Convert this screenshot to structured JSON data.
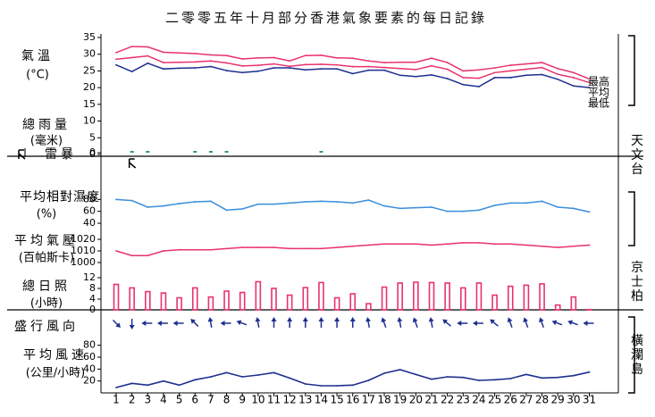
{
  "title": "二零零五年十月部分香港氣象要素的每日記錄",
  "chart_data": {
    "type": "line",
    "title": "二零零五年十月部分香港氣象要素的每日記錄",
    "x": [
      1,
      2,
      3,
      4,
      5,
      6,
      7,
      8,
      9,
      10,
      11,
      12,
      13,
      14,
      15,
      16,
      17,
      18,
      19,
      20,
      21,
      22,
      23,
      24,
      25,
      26,
      27,
      28,
      29,
      30,
      31
    ],
    "panels": {
      "temperature": {
        "label": "氣溫",
        "unit": "(°C)",
        "ylim": [
          0,
          35
        ],
        "ticks": [
          "0",
          "5",
          "10",
          "15",
          "20",
          "25",
          "30",
          "35"
        ],
        "series": [
          {
            "name": "最高",
            "color": "#e8336b",
            "values": [
              30.5,
              32.3,
              32.2,
              30.6,
              30.4,
              30.2,
              29.8,
              29.6,
              28.6,
              28.9,
              29.0,
              28.0,
              29.6,
              29.7,
              28.9,
              28.8,
              28.0,
              27.5,
              27.6,
              27.6,
              28.8,
              27.5,
              25.0,
              25.3,
              25.9,
              26.7,
              27.1,
              27.5,
              25.7,
              24.5,
              22.6
            ]
          },
          {
            "name": "平均",
            "color": "#e8336b",
            "values": [
              28.5,
              29.0,
              29.5,
              27.5,
              27.6,
              27.7,
              28.0,
              27.4,
              26.5,
              26.7,
              27.1,
              26.4,
              26.9,
              27.0,
              26.8,
              26.3,
              26.3,
              26.0,
              25.7,
              25.4,
              26.5,
              25.5,
              23.0,
              22.8,
              24.5,
              25.0,
              25.5,
              26.0,
              24.0,
              23.0,
              21.5
            ]
          },
          {
            "name": "最低",
            "color": "#1e2f8f",
            "values": [
              26.8,
              24.8,
              27.3,
              25.6,
              25.8,
              25.9,
              26.3,
              25.1,
              24.5,
              24.9,
              25.9,
              25.9,
              25.3,
              25.6,
              25.6,
              24.2,
              25.2,
              25.2,
              23.7,
              23.3,
              23.8,
              22.7,
              20.9,
              20.3,
              23.0,
              23.0,
              23.7,
              23.9,
              22.5,
              20.5,
              20.0
            ]
          }
        ]
      },
      "rainfall": {
        "label": "總雨量",
        "unit": "(毫米)",
        "ticks": [
          "0"
        ],
        "values": [
          0,
          0.1,
          0.2,
          0,
          0,
          0.1,
          0.1,
          0.1,
          0,
          0,
          0,
          0,
          0,
          0.1,
          0,
          0,
          0,
          0,
          0,
          0,
          0,
          0,
          0,
          0,
          0,
          0,
          0,
          0,
          0,
          0,
          0
        ]
      },
      "thunderstorm": {
        "label": "雷暴",
        "ticks": [
          "0"
        ],
        "days": [
          2
        ]
      },
      "humidity": {
        "label": "平均相對濕度",
        "unit": "(%)",
        "ylim": [
          40,
          100
        ],
        "ticks": [
          "40",
          "60",
          "80"
        ],
        "color": "#3a8edc",
        "values": [
          80,
          78,
          67,
          69,
          73,
          76,
          77,
          62,
          64,
          72,
          72,
          74,
          76,
          77,
          76,
          74,
          79,
          69,
          65,
          66,
          67,
          60,
          60,
          62,
          70,
          74,
          74,
          77,
          67,
          65,
          59
        ]
      },
      "pressure": {
        "label": "平均氣壓",
        "unit": "(百帕斯卡)",
        "ylim": [
          1000,
          1020
        ],
        "ticks": [
          "1000",
          "1010",
          "1020"
        ],
        "color": "#e8336b",
        "values": [
          1010,
          1006,
          1006,
          1010,
          1011,
          1011,
          1011,
          1012,
          1013,
          1013,
          1013,
          1012,
          1012,
          1012,
          1013,
          1014,
          1015,
          1016,
          1016,
          1016,
          1015,
          1016,
          1017,
          1017,
          1016,
          1016,
          1015,
          1014,
          1013,
          1014,
          1015
        ]
      },
      "sunshine": {
        "label": "總日照",
        "unit": "(小時)",
        "ylim": [
          0,
          12
        ],
        "ticks": [
          "0",
          "4",
          "8",
          "12"
        ],
        "color": "#e8336b",
        "values": [
          9.5,
          8.2,
          6.8,
          6.3,
          4.5,
          8.2,
          4.8,
          7.0,
          6.5,
          10.5,
          8.0,
          5.5,
          8.3,
          10.2,
          4.5,
          6.0,
          2.3,
          8.5,
          10.0,
          10.3,
          10.2,
          10.0,
          8.2,
          10.0,
          5.5,
          8.8,
          9.2,
          9.7,
          1.8,
          4.8,
          0.1
        ]
      },
      "wind_direction": {
        "label": "盛行風向",
        "degrees_toward": [
          45,
          90,
          180,
          180,
          180,
          225,
          260,
          180,
          200,
          260,
          270,
          270,
          270,
          270,
          270,
          270,
          260,
          250,
          260,
          250,
          260,
          220,
          180,
          180,
          220,
          250,
          250,
          250,
          200,
          200,
          180
        ]
      },
      "wind_speed": {
        "label": "平均風速",
        "unit": "(公里/小時)",
        "ylim": [
          0,
          90
        ],
        "ticks": [
          "20",
          "40",
          "60",
          "80"
        ],
        "color": "#1e2f8f",
        "values": [
          9,
          16,
          13,
          20,
          13,
          22,
          27,
          34,
          27,
          30,
          34,
          25,
          15,
          12,
          12,
          13,
          21,
          33,
          39,
          31,
          23,
          27,
          26,
          21,
          22,
          24,
          31,
          25,
          26,
          29,
          35
        ]
      }
    },
    "side_labels": [
      "天文台",
      "京士柏",
      "橫瀾島"
    ]
  }
}
